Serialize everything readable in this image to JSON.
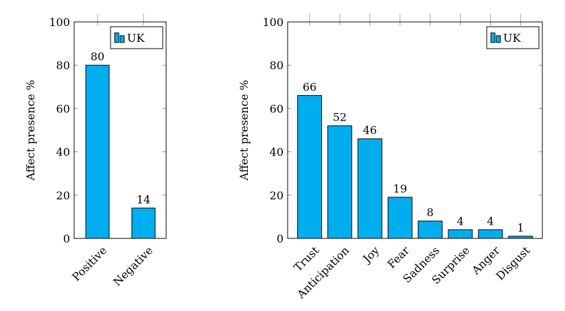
{
  "chart_data": [
    {
      "type": "bar",
      "categories": [
        "Positive",
        "Negative"
      ],
      "series": [
        {
          "name": "UK",
          "values": [
            80,
            14
          ]
        }
      ],
      "ylabel": "Affect presence %",
      "xlabel": "",
      "ylim": [
        0,
        100
      ],
      "yticks": [
        0,
        20,
        40,
        60,
        80,
        100
      ],
      "legend_position": "top-right",
      "bar_color": "#00AEEF",
      "grid": false
    },
    {
      "type": "bar",
      "categories": [
        "Trust",
        "Anticipation",
        "Joy",
        "Fear",
        "Sadness",
        "Surprise",
        "Anger",
        "Disgust"
      ],
      "series": [
        {
          "name": "UK",
          "values": [
            66,
            52,
            46,
            19,
            8,
            4,
            4,
            1
          ]
        }
      ],
      "ylabel": "Affect presence %",
      "xlabel": "",
      "ylim": [
        0,
        100
      ],
      "yticks": [
        0,
        20,
        40,
        60,
        80,
        100
      ],
      "legend_position": "top-right",
      "bar_color": "#00AEEF",
      "grid": false
    }
  ]
}
